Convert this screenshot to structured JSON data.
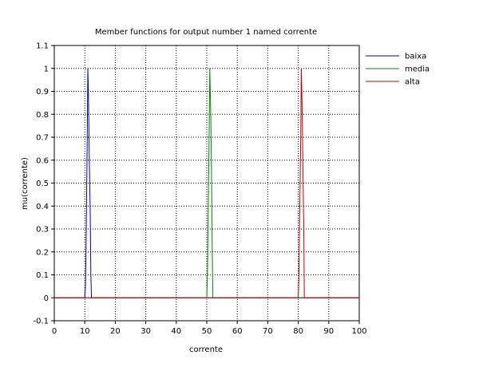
{
  "chart_data": {
    "type": "line",
    "title": "Member functions for output number 1 named corrente",
    "xlabel": "corrente",
    "ylabel": "mu(corrente)",
    "xlim": [
      0,
      100
    ],
    "ylim": [
      -0.1,
      1.1
    ],
    "x_ticks": [
      "0",
      "10",
      "20",
      "30",
      "40",
      "50",
      "60",
      "70",
      "80",
      "90",
      "100"
    ],
    "y_ticks": [
      "-0.1",
      "0",
      "0.1",
      "0.2",
      "0.3",
      "0.4",
      "0.5",
      "0.6",
      "0.7",
      "0.8",
      "0.9",
      "1",
      "1.1"
    ],
    "grid": true,
    "legend_position": "top-right",
    "series": [
      {
        "name": "baixa",
        "color": "#0000cc",
        "points": [
          [
            0,
            0
          ],
          [
            10,
            0
          ],
          [
            10.2,
            0.05
          ],
          [
            10.4,
            0.2
          ],
          [
            10.6,
            0.45
          ],
          [
            10.8,
            0.7
          ],
          [
            11,
            1.0
          ],
          [
            11.2,
            0.88
          ],
          [
            11.5,
            0.6
          ],
          [
            11.8,
            0.35
          ],
          [
            12,
            0.1
          ],
          [
            12.2,
            0
          ],
          [
            100,
            0
          ]
        ]
      },
      {
        "name": "media",
        "color": "#008800",
        "points": [
          [
            0,
            0
          ],
          [
            50,
            0
          ],
          [
            50.2,
            0.1
          ],
          [
            50.5,
            0.4
          ],
          [
            50.8,
            0.75
          ],
          [
            51,
            1.0
          ],
          [
            51.3,
            0.8
          ],
          [
            51.6,
            0.5
          ],
          [
            51.8,
            0.2
          ],
          [
            52,
            0
          ],
          [
            100,
            0
          ]
        ]
      },
      {
        "name": "alta",
        "color": "#cc0000",
        "points": [
          [
            0,
            0
          ],
          [
            80,
            0
          ],
          [
            80.2,
            0.1
          ],
          [
            80.5,
            0.4
          ],
          [
            80.8,
            0.7
          ],
          [
            81,
            1.0
          ],
          [
            81.2,
            0.88
          ],
          [
            81.5,
            0.6
          ],
          [
            81.8,
            0.3
          ],
          [
            82,
            0
          ],
          [
            100,
            0
          ]
        ]
      }
    ]
  }
}
